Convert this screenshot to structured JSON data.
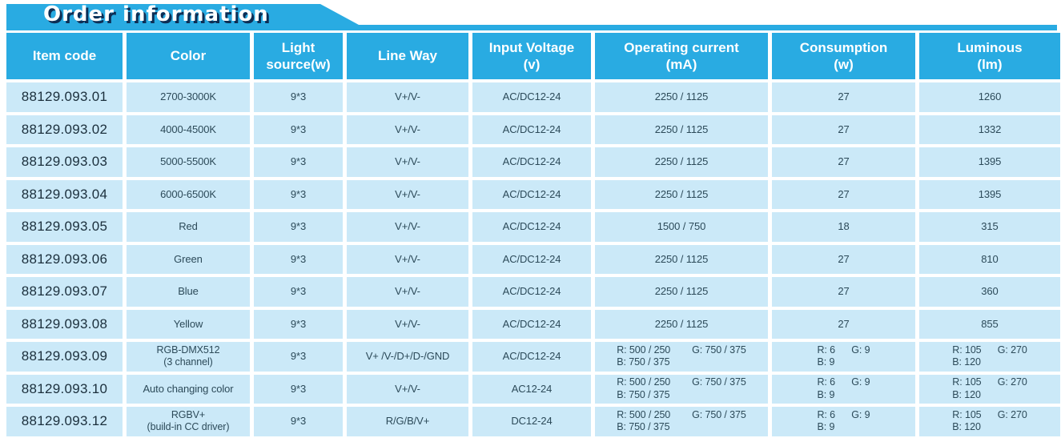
{
  "title": "Order information",
  "colors": {
    "accent_blue": "#29ABE2",
    "cell_light_blue": "#CBE9F8",
    "cell_text": "#2C4A59",
    "title_shadow_navy": "#0D2E55",
    "header_text": "#FFFFFF"
  },
  "table": {
    "headers": [
      {
        "label": "Item code"
      },
      {
        "label": "Color"
      },
      {
        "label": "Light\nsource(w)"
      },
      {
        "label": "Line Way"
      },
      {
        "label": "Input Voltage\n(v)"
      },
      {
        "label": "Operating current\n(mA)"
      },
      {
        "label": "Consumption\n(w)"
      },
      {
        "label": "Luminous\n(lm)"
      }
    ],
    "rows": [
      {
        "item_code": "88129.093.01",
        "color": "2700-3000K",
        "light_source": "9*3",
        "line_way": "V+/V-",
        "input_voltage": "AC/DC12-24",
        "operating_current": "2250 / 1125",
        "consumption": "27",
        "luminous": "1260"
      },
      {
        "item_code": "88129.093.02",
        "color": "4000-4500K",
        "light_source": "9*3",
        "line_way": "V+/V-",
        "input_voltage": "AC/DC12-24",
        "operating_current": "2250 / 1125",
        "consumption": "27",
        "luminous": "1332"
      },
      {
        "item_code": "88129.093.03",
        "color": "5000-5500K",
        "light_source": "9*3",
        "line_way": "V+/V-",
        "input_voltage": "AC/DC12-24",
        "operating_current": "2250 / 1125",
        "consumption": "27",
        "luminous": "1395"
      },
      {
        "item_code": "88129.093.04",
        "color": "6000-6500K",
        "light_source": "9*3",
        "line_way": "V+/V-",
        "input_voltage": "AC/DC12-24",
        "operating_current": "2250 / 1125",
        "consumption": "27",
        "luminous": "1395"
      },
      {
        "item_code": "88129.093.05",
        "color": "Red",
        "light_source": "9*3",
        "line_way": "V+/V-",
        "input_voltage": "AC/DC12-24",
        "operating_current": "1500 / 750",
        "consumption": "18",
        "luminous": "315"
      },
      {
        "item_code": "88129.093.06",
        "color": "Green",
        "light_source": "9*3",
        "line_way": "V+/V-",
        "input_voltage": "AC/DC12-24",
        "operating_current": "2250 / 1125",
        "consumption": "27",
        "luminous": "810"
      },
      {
        "item_code": "88129.093.07",
        "color": "Blue",
        "light_source": "9*3",
        "line_way": "V+/V-",
        "input_voltage": "AC/DC12-24",
        "operating_current": "2250 / 1125",
        "consumption": "27",
        "luminous": "360"
      },
      {
        "item_code": "88129.093.08",
        "color": "Yellow",
        "light_source": "9*3",
        "line_way": "V+/V-",
        "input_voltage": "AC/DC12-24",
        "operating_current": "2250 / 1125",
        "consumption": "27",
        "luminous": "855"
      },
      {
        "item_code": "88129.093.09",
        "color": "RGB-DMX512\n(3 channel)",
        "light_source": "9*3",
        "line_way": "V+ /V-/D+/D-/GND",
        "input_voltage": "AC/DC12-24",
        "operating_current": "R: 500 / 250        G: 750 / 375\nB: 750 / 375",
        "consumption": "R: 6      G: 9\nB: 9",
        "luminous": "R: 105      G: 270\nB: 120"
      },
      {
        "item_code": "88129.093.10",
        "color": "Auto changing color",
        "light_source": "9*3",
        "line_way": "V+/V-",
        "input_voltage": "AC12-24",
        "operating_current": "R: 500 / 250        G: 750 / 375\nB: 750 / 375",
        "consumption": "R: 6      G: 9\nB: 9",
        "luminous": "R: 105      G: 270\nB: 120"
      },
      {
        "item_code": "88129.093.12",
        "color": "RGBV+\n(build-in CC driver)",
        "light_source": "9*3",
        "line_way": "R/G/B/V+",
        "input_voltage": "DC12-24",
        "operating_current": "R: 500 / 250        G: 750 / 375\nB: 750 / 375",
        "consumption": "R: 6      G: 9\nB: 9",
        "luminous": "R: 105      G: 270\nB: 120"
      }
    ]
  }
}
